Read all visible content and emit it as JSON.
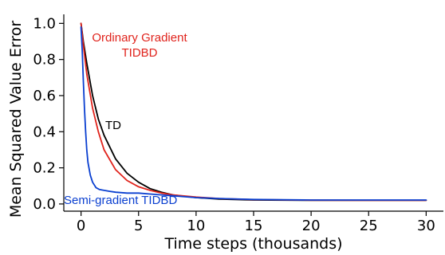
{
  "chart_data": {
    "type": "line",
    "xlabel": "Time steps (thousands)",
    "ylabel": "Mean Squared Value Error",
    "xlim": [
      -1.5,
      31.5
    ],
    "ylim": [
      -0.04,
      1.05
    ],
    "xticks": [
      0,
      5,
      10,
      15,
      20,
      25,
      30
    ],
    "yticks": [
      0.0,
      0.2,
      0.4,
      0.6,
      0.8,
      1.0
    ],
    "xtick_labels": [
      "0",
      "5",
      "10",
      "15",
      "20",
      "25",
      "30"
    ],
    "ytick_labels": [
      "0.0",
      "0.2",
      "0.4",
      "0.6",
      "0.8",
      "1.0"
    ],
    "grid": false,
    "series": [
      {
        "name": "TD",
        "color": "#000000",
        "points": [
          [
            0,
            1.0
          ],
          [
            0.2,
            0.9
          ],
          [
            0.5,
            0.78
          ],
          [
            1,
            0.6
          ],
          [
            1.5,
            0.47
          ],
          [
            2,
            0.38
          ],
          [
            3,
            0.25
          ],
          [
            4,
            0.17
          ],
          [
            5,
            0.12
          ],
          [
            6,
            0.085
          ],
          [
            7,
            0.065
          ],
          [
            8,
            0.05
          ],
          [
            10,
            0.035
          ],
          [
            12,
            0.027
          ],
          [
            15,
            0.022
          ],
          [
            20,
            0.02
          ],
          [
            25,
            0.02
          ],
          [
            30,
            0.02
          ]
        ]
      },
      {
        "name": "Ordinary Gradient TIDBD",
        "color": "#e0231c",
        "points": [
          [
            0,
            1.0
          ],
          [
            0.2,
            0.88
          ],
          [
            0.5,
            0.72
          ],
          [
            1,
            0.53
          ],
          [
            1.5,
            0.4
          ],
          [
            2,
            0.3
          ],
          [
            3,
            0.19
          ],
          [
            4,
            0.13
          ],
          [
            5,
            0.095
          ],
          [
            6,
            0.075
          ],
          [
            7,
            0.06
          ],
          [
            8,
            0.05
          ],
          [
            10,
            0.038
          ],
          [
            12,
            0.03
          ],
          [
            15,
            0.024
          ],
          [
            20,
            0.021
          ],
          [
            25,
            0.02
          ],
          [
            30,
            0.02
          ]
        ]
      },
      {
        "name": "Semi-gradient TIDBD",
        "color": "#0a3fd0",
        "points": [
          [
            0,
            0.98
          ],
          [
            0.1,
            0.85
          ],
          [
            0.2,
            0.68
          ],
          [
            0.3,
            0.52
          ],
          [
            0.4,
            0.4
          ],
          [
            0.5,
            0.3
          ],
          [
            0.6,
            0.23
          ],
          [
            0.8,
            0.16
          ],
          [
            1.0,
            0.12
          ],
          [
            1.3,
            0.09
          ],
          [
            1.6,
            0.08
          ],
          [
            2,
            0.075
          ],
          [
            2.5,
            0.07
          ],
          [
            3,
            0.065
          ],
          [
            4,
            0.06
          ],
          [
            5,
            0.06
          ],
          [
            6,
            0.055
          ],
          [
            7,
            0.05
          ],
          [
            8,
            0.045
          ],
          [
            10,
            0.035
          ],
          [
            12,
            0.03
          ],
          [
            15,
            0.025
          ],
          [
            20,
            0.022
          ],
          [
            25,
            0.022
          ],
          [
            30,
            0.022
          ]
        ]
      }
    ],
    "annotations": [
      {
        "id": "og",
        "lines": [
          "Ordinary Gradient",
          "TIDBD"
        ],
        "color": "#e0231c"
      },
      {
        "id": "td",
        "lines": [
          "TD"
        ],
        "color": "#000000"
      },
      {
        "id": "sg",
        "lines": [
          "Semi-gradient TIDBD"
        ],
        "color": "#0a3fd0"
      }
    ]
  }
}
